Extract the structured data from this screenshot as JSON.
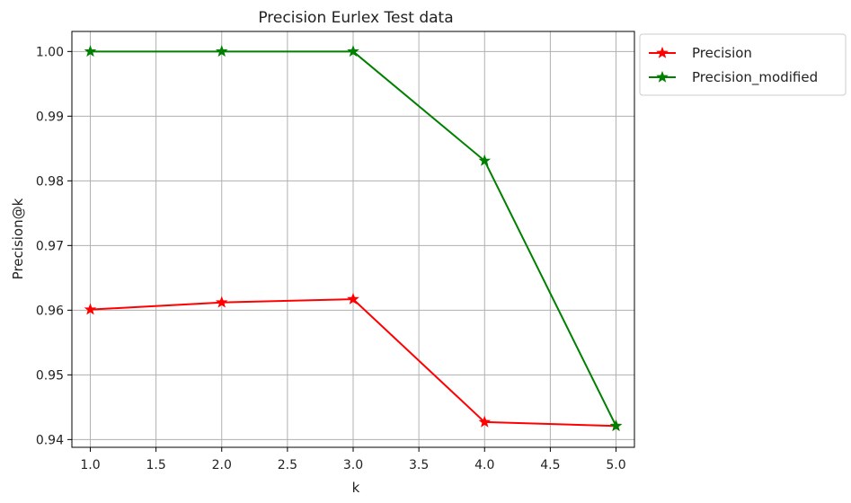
{
  "chart_data": {
    "type": "line",
    "title": "Precision Eurlex Test data",
    "xlabel": "k",
    "ylabel": "Precision@k",
    "x": [
      1.0,
      2.0,
      3.0,
      4.0,
      5.0
    ],
    "xlim": [
      0.86,
      5.14
    ],
    "ylim": [
      0.9388,
      1.0031
    ],
    "xticks": [
      1.0,
      1.5,
      2.0,
      2.5,
      3.0,
      3.5,
      4.0,
      4.5,
      5.0
    ],
    "xtick_labels": [
      "1.0",
      "1.5",
      "2.0",
      "2.5",
      "3.0",
      "3.5",
      "4.0",
      "4.5",
      "5.0"
    ],
    "yticks": [
      0.94,
      0.95,
      0.96,
      0.97,
      0.98,
      0.99,
      1.0
    ],
    "ytick_labels": [
      "0.94",
      "0.95",
      "0.96",
      "0.97",
      "0.98",
      "0.99",
      "1.00"
    ],
    "grid": true,
    "legend_position": "outside-top-right",
    "series": [
      {
        "name": "Precision",
        "color": "#ff0000",
        "marker": "star",
        "values": [
          0.9601,
          0.9612,
          0.9617,
          0.9427,
          0.9421
        ]
      },
      {
        "name": "Precision_modified",
        "color": "#008000",
        "marker": "star",
        "values": [
          1.0,
          1.0,
          1.0,
          0.9831,
          0.9421
        ]
      }
    ]
  }
}
